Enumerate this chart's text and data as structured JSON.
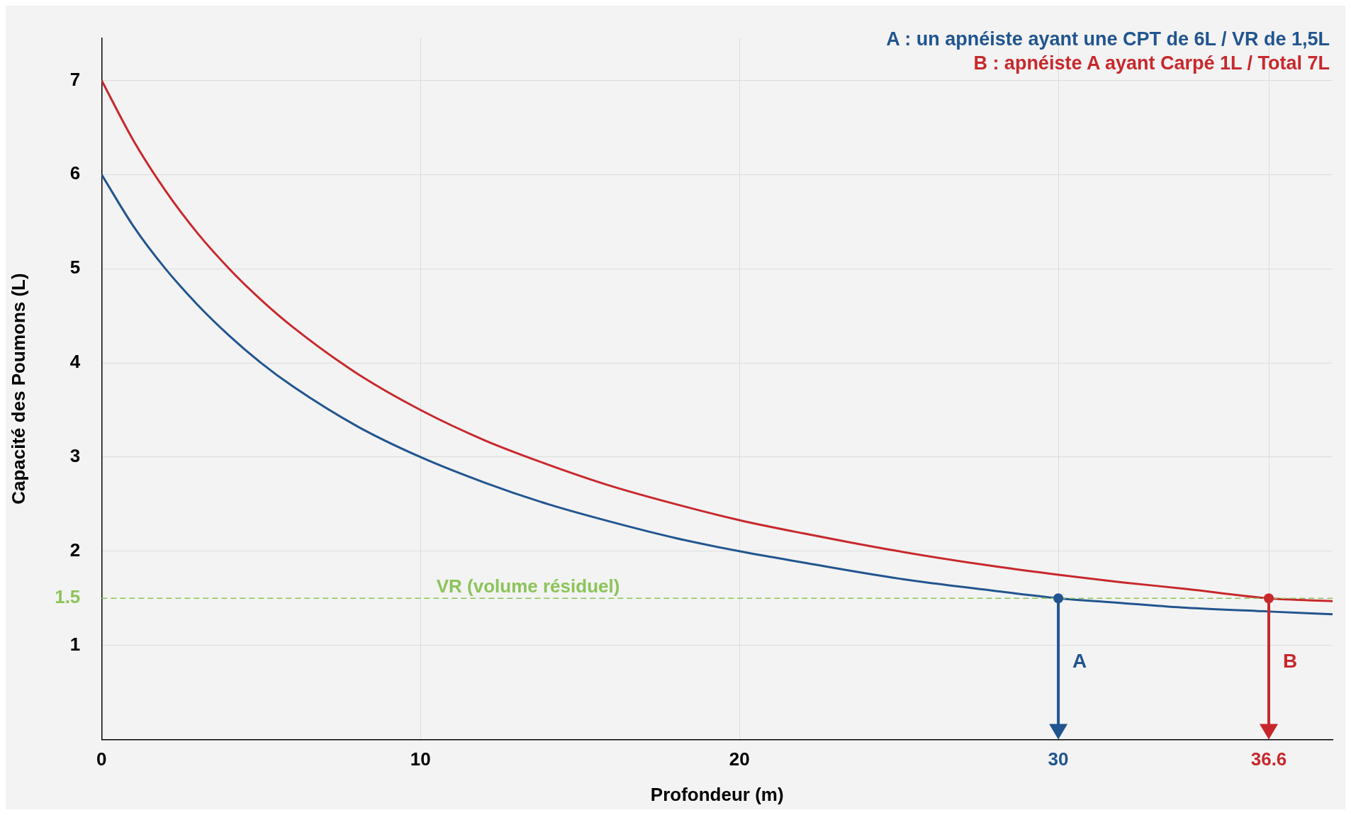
{
  "chart_data": {
    "type": "line",
    "xlabel": "Profondeur (m)",
    "ylabel": "Capacité des Poumons (L)",
    "x": [
      0,
      1,
      2,
      3,
      4,
      5,
      6,
      8,
      10,
      12,
      14,
      16,
      18,
      20,
      22,
      25,
      28,
      30,
      32,
      34,
      36.6,
      38.6
    ],
    "series": [
      {
        "name": "A : un apnéiste ayant une CPT de 6L / VR de 1,5L",
        "color": "#21558f",
        "values": [
          6,
          5.45,
          5,
          4.62,
          4.29,
          4,
          3.75,
          3.33,
          3,
          2.73,
          2.5,
          2.31,
          2.14,
          2,
          1.88,
          1.71,
          1.58,
          1.5,
          1.45,
          1.4,
          1.36,
          1.33
        ]
      },
      {
        "name": "B : apnéiste A ayant Carpé 1L / Total 7L",
        "color": "#c8282c",
        "values": [
          7,
          6.36,
          5.83,
          5.38,
          5,
          4.67,
          4.38,
          3.89,
          3.5,
          3.18,
          2.92,
          2.69,
          2.5,
          2.33,
          2.19,
          2,
          1.84,
          1.75,
          1.67,
          1.6,
          1.5,
          1.47
        ]
      }
    ],
    "xlim": [
      0,
      38.6
    ],
    "xticks": [
      0,
      10,
      20,
      30,
      36.6
    ],
    "ylim": [
      0,
      7.45
    ],
    "yticks": [
      1,
      1.5,
      2,
      3,
      4,
      5,
      6,
      7
    ],
    "ref_lines": [
      {
        "axis": "y",
        "value": 1.5,
        "label": "VR (volume résiduel)",
        "color": "#8cc45a",
        "line_style": "dashed"
      }
    ],
    "annotations": [
      {
        "text": "A",
        "x": 30,
        "y": 1.5
      },
      {
        "text": "B",
        "x": 36.6,
        "y": 1.5
      }
    ],
    "grid": true,
    "legend": "top right",
    "marker": "none",
    "line_style": "solid"
  }
}
